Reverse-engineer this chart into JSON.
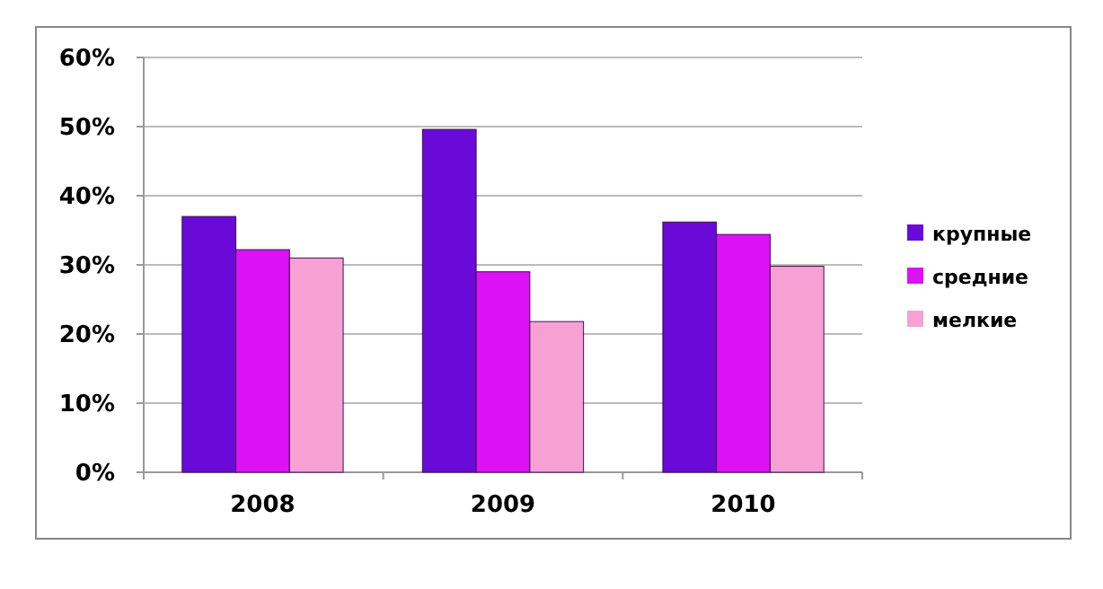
{
  "chart_data": {
    "type": "bar",
    "categories": [
      "2008",
      "2009",
      "2010"
    ],
    "series": [
      {
        "name": "крупные",
        "color": "#6a0ad8",
        "values": [
          37,
          49.6,
          36.2
        ]
      },
      {
        "name": "средние",
        "color": "#dd11f5",
        "values": [
          32.2,
          29,
          34.4
        ]
      },
      {
        "name": "мелкие",
        "color": "#f7a0d4",
        "values": [
          31,
          21.8,
          29.8
        ]
      }
    ],
    "ylim": [
      0,
      60
    ],
    "yticks": [
      {
        "value": 0,
        "label": "0%"
      },
      {
        "value": 10,
        "label": "10%"
      },
      {
        "value": 20,
        "label": "20%"
      },
      {
        "value": 30,
        "label": "30%"
      },
      {
        "value": 40,
        "label": "40%"
      },
      {
        "value": 50,
        "label": "50%"
      },
      {
        "value": 60,
        "label": "60%"
      }
    ],
    "grid": "y",
    "legend": "right"
  }
}
